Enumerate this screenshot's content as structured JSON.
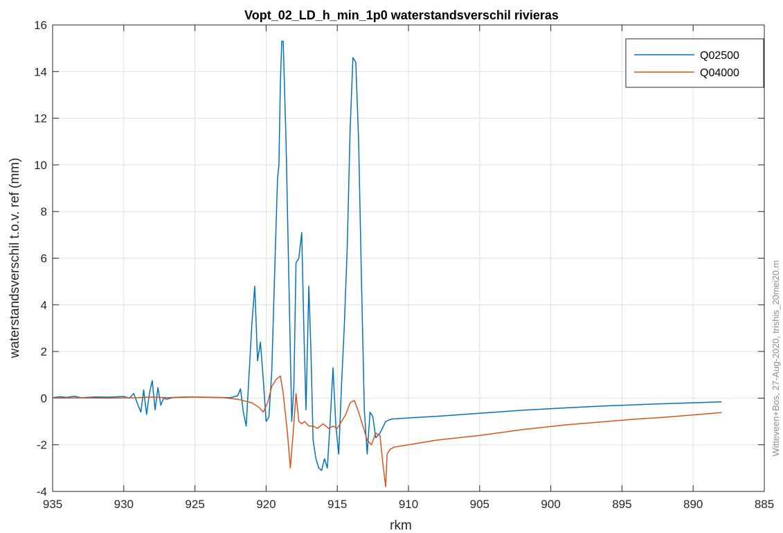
{
  "chart_data": {
    "type": "line",
    "title": "Vopt_02_LD_h_min_1p0 waterstandsverschil rivieras",
    "xlabel": "rkm",
    "ylabel": "waterstandsverschil t.o.v. ref (mm)",
    "xlim": [
      935,
      885
    ],
    "x_reversed": true,
    "ylim": [
      -4,
      16
    ],
    "x_ticks": [
      935,
      930,
      925,
      920,
      915,
      910,
      905,
      900,
      895,
      890,
      885
    ],
    "y_ticks": [
      -4,
      -2,
      0,
      2,
      4,
      6,
      8,
      10,
      12,
      14,
      16
    ],
    "grid": true,
    "legend_position": "top-right",
    "annotation": "Witteveen+Bos, 27-Aug-2020, trishis_20mei20.m",
    "series": [
      {
        "name": "Q02500",
        "color": "#0072BD",
        "points": [
          [
            935,
            0.02
          ],
          [
            934.5,
            0.06
          ],
          [
            934,
            0.03
          ],
          [
            933.5,
            0.08
          ],
          [
            933,
            0.02
          ],
          [
            932,
            0.05
          ],
          [
            931,
            0.04
          ],
          [
            930,
            0.07
          ],
          [
            929.6,
            0.0
          ],
          [
            929.3,
            0.2
          ],
          [
            929.0,
            -0.3
          ],
          [
            928.8,
            -0.6
          ],
          [
            928.6,
            0.35
          ],
          [
            928.4,
            -0.7
          ],
          [
            928.2,
            0.2
          ],
          [
            928.0,
            0.75
          ],
          [
            927.8,
            -0.5
          ],
          [
            927.6,
            0.45
          ],
          [
            927.4,
            -0.3
          ],
          [
            927.2,
            0.0
          ],
          [
            927.0,
            -0.05
          ],
          [
            926.5,
            0.03
          ],
          [
            925.5,
            0.05
          ],
          [
            924.5,
            0.04
          ],
          [
            923.5,
            0.03
          ],
          [
            922.5,
            0.02
          ],
          [
            922.0,
            0.1
          ],
          [
            921.8,
            0.4
          ],
          [
            921.6,
            -0.6
          ],
          [
            921.4,
            -1.2
          ],
          [
            921.2,
            1.0
          ],
          [
            921.0,
            3.2
          ],
          [
            920.8,
            4.8
          ],
          [
            920.6,
            1.6
          ],
          [
            920.4,
            2.4
          ],
          [
            920.2,
            0.8
          ],
          [
            920.0,
            -1.0
          ],
          [
            919.8,
            -0.8
          ],
          [
            919.6,
            1.2
          ],
          [
            919.4,
            5.4
          ],
          [
            919.2,
            9.4
          ],
          [
            919.1,
            10.0
          ],
          [
            919.0,
            13.5
          ],
          [
            918.9,
            15.3
          ],
          [
            918.8,
            15.3
          ],
          [
            918.6,
            11.0
          ],
          [
            918.4,
            5.0
          ],
          [
            918.2,
            -1.0
          ],
          [
            918.05,
            0.5
          ],
          [
            917.9,
            5.8
          ],
          [
            917.7,
            6.0
          ],
          [
            917.5,
            7.1
          ],
          [
            917.35,
            3.0
          ],
          [
            917.2,
            -0.5
          ],
          [
            917.0,
            4.8
          ],
          [
            916.85,
            2.0
          ],
          [
            916.7,
            -1.8
          ],
          [
            916.5,
            -2.6
          ],
          [
            916.3,
            -3.0
          ],
          [
            916.1,
            -3.1
          ],
          [
            915.9,
            -2.6
          ],
          [
            915.7,
            -3.0
          ],
          [
            915.5,
            -1.0
          ],
          [
            915.3,
            1.3
          ],
          [
            915.1,
            -1.2
          ],
          [
            914.9,
            -2.4
          ],
          [
            914.7,
            0.6
          ],
          [
            914.5,
            3.2
          ],
          [
            914.3,
            6.5
          ],
          [
            914.1,
            11.5
          ],
          [
            913.9,
            14.6
          ],
          [
            913.7,
            14.4
          ],
          [
            913.5,
            11.0
          ],
          [
            913.3,
            5.0
          ],
          [
            913.1,
            -0.5
          ],
          [
            912.9,
            -2.4
          ],
          [
            912.7,
            -0.6
          ],
          [
            912.5,
            -0.8
          ],
          [
            912.3,
            -1.7
          ],
          [
            912.0,
            -1.5
          ],
          [
            911.6,
            -1.0
          ],
          [
            911.2,
            -0.9
          ],
          [
            910,
            -0.85
          ],
          [
            908,
            -0.78
          ],
          [
            905,
            -0.65
          ],
          [
            902,
            -0.52
          ],
          [
            899,
            -0.42
          ],
          [
            896,
            -0.33
          ],
          [
            893,
            -0.26
          ],
          [
            890,
            -0.2
          ],
          [
            888,
            -0.16
          ]
        ]
      },
      {
        "name": "Q04000",
        "color": "#D95319",
        "points": [
          [
            935,
            0.0
          ],
          [
            933,
            0.01
          ],
          [
            931,
            0.0
          ],
          [
            929,
            0.02
          ],
          [
            928,
            0.05
          ],
          [
            927,
            0.02
          ],
          [
            926,
            0.03
          ],
          [
            925,
            0.05
          ],
          [
            924,
            0.03
          ],
          [
            923,
            0.02
          ],
          [
            922,
            -0.05
          ],
          [
            921,
            -0.2
          ],
          [
            920.5,
            -0.4
          ],
          [
            920.2,
            -0.6
          ],
          [
            919.9,
            -0.2
          ],
          [
            919.6,
            0.5
          ],
          [
            919.3,
            0.8
          ],
          [
            919.0,
            0.95
          ],
          [
            918.8,
            0.2
          ],
          [
            918.5,
            -1.5
          ],
          [
            918.3,
            -3.0
          ],
          [
            918.1,
            -1.5
          ],
          [
            917.9,
            0.2
          ],
          [
            917.7,
            -1.0
          ],
          [
            917.5,
            -1.1
          ],
          [
            917.3,
            -1.0
          ],
          [
            917.0,
            -1.2
          ],
          [
            916.7,
            -1.2
          ],
          [
            916.4,
            -1.3
          ],
          [
            916.0,
            -1.1
          ],
          [
            915.6,
            -1.3
          ],
          [
            915.3,
            -1.2
          ],
          [
            915.0,
            -1.3
          ],
          [
            914.7,
            -1.0
          ],
          [
            914.4,
            -0.7
          ],
          [
            914.1,
            -0.2
          ],
          [
            913.8,
            -0.1
          ],
          [
            913.5,
            -0.6
          ],
          [
            913.2,
            -1.2
          ],
          [
            912.9,
            -1.8
          ],
          [
            912.6,
            -2.0
          ],
          [
            912.3,
            -1.5
          ],
          [
            912.0,
            -1.6
          ],
          [
            911.8,
            -2.8
          ],
          [
            911.6,
            -3.8
          ],
          [
            911.5,
            -2.4
          ],
          [
            911.3,
            -2.2
          ],
          [
            911.0,
            -2.1
          ],
          [
            910,
            -2.0
          ],
          [
            908,
            -1.8
          ],
          [
            905,
            -1.6
          ],
          [
            902,
            -1.35
          ],
          [
            899,
            -1.15
          ],
          [
            896,
            -1.0
          ],
          [
            894,
            -0.9
          ],
          [
            892,
            -0.82
          ],
          [
            890,
            -0.72
          ],
          [
            888,
            -0.62
          ]
        ]
      }
    ]
  }
}
